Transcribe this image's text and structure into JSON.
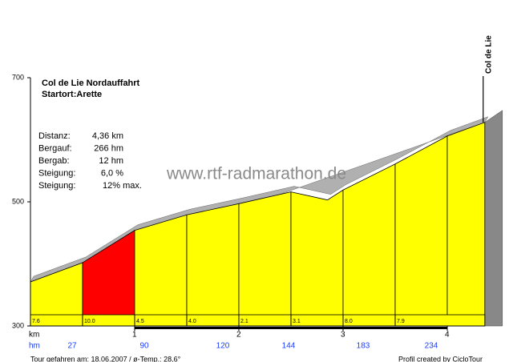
{
  "chart_data": {
    "type": "elevation-profile",
    "title": "Col de Lie  Nordauffahrt",
    "subtitle": "Startort:Arette",
    "summit_label": "Col de Lie",
    "watermark": "www.rtf-radmarathon.de",
    "info": [
      {
        "label": "Distanz:",
        "value": "4,36 km"
      },
      {
        "label": "Bergauf:",
        "value": "266 hm"
      },
      {
        "label": "Bergab:",
        "value": "12 hm"
      },
      {
        "label": "Steigung:",
        "value": "6,0 %"
      },
      {
        "label": "Steigung:",
        "value": "12% max."
      }
    ],
    "x": [
      0,
      0.5,
      1,
      1.5,
      2,
      2.5,
      2.85,
      3,
      3.5,
      4,
      4.36
    ],
    "values": [
      371,
      402,
      454,
      479,
      497,
      516,
      503,
      519,
      561,
      606,
      628
    ],
    "segment_length": 0.5,
    "grades": [
      7.6,
      10,
      4.5,
      4,
      2.1,
      3.1,
      8,
      7.9
    ],
    "grade_labels": [
      "7.6",
      "10.0",
      "4.5",
      "4.0",
      "2.1",
      "3.1",
      "8.0",
      "7.9"
    ],
    "color": "#ffff00",
    "max_grade_color": "#ff0000",
    "xlim": [
      0,
      4.36
    ],
    "xticks": [
      1,
      2,
      3,
      4
    ],
    "x_axis_label": "km",
    "ylim": [
      300,
      700
    ],
    "yticks": [
      300,
      500,
      700
    ],
    "hm_label": "hm",
    "hm_values": [
      27,
      90,
      120,
      144,
      183,
      234
    ],
    "footer_left": "Tour gefahren am: 18.06.2007  /  ø-Temp.: 28,6°",
    "footer_right": "Profil created by CicloTour"
  }
}
